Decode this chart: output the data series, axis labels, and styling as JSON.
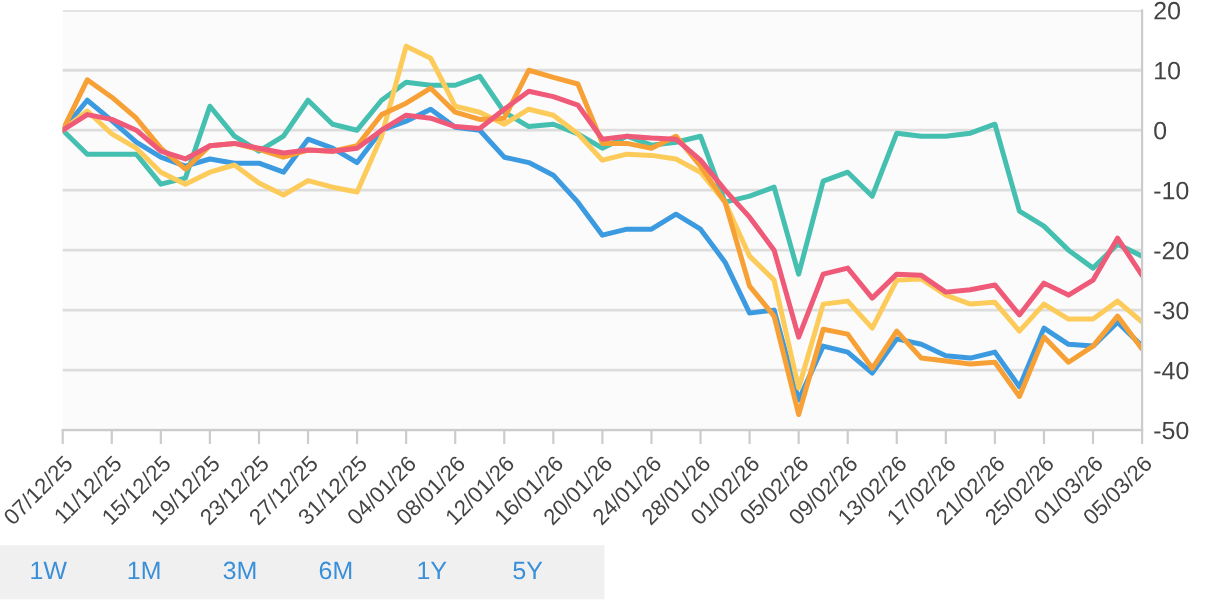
{
  "chart_data": {
    "type": "line",
    "categories": [
      "07/12/25",
      null,
      "11/12/25",
      null,
      "15/12/25",
      null,
      "19/12/25",
      null,
      "23/12/25",
      null,
      "27/12/25",
      null,
      "31/12/25",
      null,
      "04/01/26",
      null,
      "08/01/26",
      null,
      "12/01/26",
      null,
      "16/01/26",
      null,
      "20/01/26",
      null,
      "24/01/26",
      null,
      "28/01/26",
      null,
      "01/02/26",
      null,
      "05/02/26",
      null,
      "09/02/26",
      null,
      "13/02/26",
      null,
      "17/02/26",
      null,
      "21/02/26",
      null,
      "25/02/26",
      null,
      "01/03/26",
      null,
      "05/03/26"
    ],
    "series": [
      {
        "color": "#45bfb0",
        "values": [
          0,
          -4,
          -4,
          -4,
          -9,
          -8,
          4,
          -1,
          -3.5,
          -1,
          5,
          1,
          0,
          5,
          8,
          7.5,
          7.5,
          9,
          3,
          0.6,
          1,
          -0.6,
          -3,
          -1,
          -2.5,
          -2,
          -1,
          -12,
          -11,
          -9.5,
          -24,
          -8.5,
          -7,
          -11,
          -0.5,
          -1,
          -1,
          -0.5,
          1,
          -13.5,
          -16,
          -20,
          -23,
          -19,
          -21
        ]
      },
      {
        "color": "#3c9be0",
        "values": [
          0,
          5,
          1.6,
          -2,
          -4.5,
          -6,
          -4.8,
          -5.5,
          -5.5,
          -7,
          -1.5,
          -3,
          -5.4,
          0,
          1.5,
          3.5,
          0.5,
          0,
          -4.5,
          -5.4,
          -7.5,
          -12,
          -17.5,
          -16.5,
          -16.5,
          -14,
          -16.5,
          -22,
          -30.5,
          -30,
          -45,
          -36,
          -37,
          -40.5,
          -34.8,
          -35.7,
          -37.6,
          -38,
          -37,
          -42.8,
          -33,
          -35.7,
          -36,
          -32,
          -36
        ]
      },
      {
        "color": "#fccb5a",
        "values": [
          0,
          3.2,
          -0.6,
          -3,
          -7,
          -9,
          -7,
          -5.8,
          -8.8,
          -10.8,
          -8.4,
          -9.5,
          -10.3,
          -1,
          14,
          12,
          4,
          3,
          1,
          3.5,
          2.5,
          -0.6,
          -5,
          -4,
          -4.2,
          -4.8,
          -7,
          -12,
          -21,
          -25,
          -43,
          -29,
          -28.5,
          -33,
          -25,
          -24.8,
          -27.5,
          -29,
          -28.7,
          -33.5,
          -29,
          -31.5,
          -31.5,
          -28.5,
          -32
        ]
      },
      {
        "color": "#f7a035",
        "values": [
          0,
          8.4,
          5.5,
          2,
          -3,
          -6.5,
          -2.6,
          -2.2,
          -3.2,
          -4.5,
          -3.3,
          -3.5,
          -2.6,
          2.6,
          4.5,
          7,
          3,
          1.8,
          2,
          10,
          8.8,
          7.7,
          -2.2,
          -2.2,
          -3,
          -1,
          -6,
          -12,
          -26,
          -31,
          -47.4,
          -33.2,
          -34,
          -39.7,
          -33.5,
          -38,
          -38.5,
          -39,
          -38.7,
          -44.4,
          -34.5,
          -38.7,
          -36,
          -31,
          -36.5
        ]
      },
      {
        "color": "#ef5a78",
        "values": [
          0,
          2.6,
          1.8,
          0,
          -3.5,
          -4.8,
          -2.6,
          -2.2,
          -3,
          -3.8,
          -3.3,
          -3.5,
          -3,
          0,
          2.5,
          2,
          0.6,
          0.3,
          3.5,
          6.5,
          5.6,
          4.2,
          -1.5,
          -1,
          -1.3,
          -1.5,
          -5,
          -10,
          -14.5,
          -20,
          -34.5,
          -24,
          -23,
          -28,
          -24,
          -24.2,
          -27,
          -26.6,
          -25.8,
          -30.8,
          -25.5,
          -27.5,
          -25,
          -18,
          -24.2
        ]
      }
    ],
    "ylim": [
      -50,
      20
    ],
    "yticks": [
      -50,
      -40,
      -30,
      -20,
      -10,
      0,
      10,
      20
    ],
    "grid": "y",
    "legend": false,
    "annotations": [
      "1W",
      "1M",
      "3M",
      "6M",
      "1Y",
      "5Y"
    ]
  }
}
